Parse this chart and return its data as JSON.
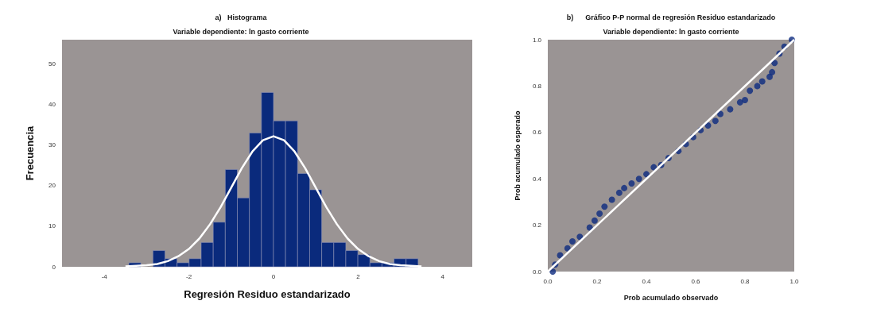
{
  "chart_data": [
    {
      "type": "histogram",
      "title": "a)   Histograma",
      "subtitle": "Variable dependiente: ln gasto corriente",
      "xlabel": "Regresión Residuo estandarizado",
      "ylabel": "Frecuencia",
      "bins": [
        -3.42,
        -3.135,
        -2.85,
        -2.565,
        -2.28,
        -1.995,
        -1.71,
        -1.425,
        -1.14,
        -0.855,
        -0.57,
        -0.285,
        0,
        0.285,
        0.57,
        0.855,
        1.14,
        1.425,
        1.71,
        1.995,
        2.28,
        2.565,
        2.85,
        3.135,
        3.42
      ],
      "values": [
        1,
        0,
        4,
        2,
        1,
        2,
        6,
        11,
        24,
        17,
        33,
        43,
        36,
        36,
        23,
        19,
        6,
        6,
        4,
        3,
        1,
        1,
        2,
        2
      ],
      "color": "#0a2a7c",
      "series": [
        {
          "type": "line",
          "marker": "none",
          "color": "#ffffff",
          "x": [
            -3.5,
            -3,
            -2.75,
            -2.5,
            -2.25,
            -2,
            -1.75,
            -1.5,
            -1.25,
            -1,
            -0.75,
            -0.5,
            -0.25,
            0,
            0.25,
            0.5,
            0.75,
            1,
            1.25,
            1.5,
            1.75,
            2,
            2.25,
            2.5,
            2.75,
            3,
            3.5
          ],
          "values": [
            0.1,
            0.4,
            0.7,
            1.4,
            2.6,
            4.4,
            7,
            10.5,
            14.7,
            19.5,
            24.3,
            28.4,
            31.2,
            32.2,
            31.2,
            28.4,
            24.3,
            19.5,
            14.7,
            10.5,
            7,
            4.4,
            2.6,
            1.4,
            0.7,
            0.4,
            0.1
          ]
        }
      ],
      "xlim": [
        -5,
        4.7
      ],
      "xticks": [
        -4,
        -2,
        0,
        2,
        4
      ],
      "ylim": [
        0,
        56
      ],
      "yticks": [
        0,
        10,
        20,
        30,
        40,
        50
      ],
      "grid": false
    },
    {
      "type": "scatter",
      "title": "b)      Gráfico P-P normal de regresión Residuo estandarizado",
      "subtitle": "Variable dependiente: ln gasto corriente",
      "xlabel": "Prob acumulado observado",
      "ylabel": "Prob acumulado esperado",
      "series": [
        {
          "type": "scatter",
          "color": "#0d2a80",
          "x": [
            0.02,
            0.03,
            0.05,
            0.08,
            0.1,
            0.13,
            0.17,
            0.19,
            0.21,
            0.23,
            0.26,
            0.29,
            0.31,
            0.34,
            0.37,
            0.4,
            0.43,
            0.46,
            0.49,
            0.53,
            0.56,
            0.59,
            0.62,
            0.65,
            0.68,
            0.7,
            0.74,
            0.78,
            0.8,
            0.82,
            0.85,
            0.87,
            0.9,
            0.91,
            0.92,
            0.94,
            0.96,
            0.99
          ],
          "values": [
            0,
            0.03,
            0.07,
            0.1,
            0.13,
            0.15,
            0.19,
            0.22,
            0.25,
            0.28,
            0.31,
            0.34,
            0.36,
            0.38,
            0.4,
            0.42,
            0.45,
            0.46,
            0.49,
            0.52,
            0.55,
            0.58,
            0.61,
            0.63,
            0.65,
            0.68,
            0.7,
            0.73,
            0.74,
            0.78,
            0.8,
            0.82,
            0.84,
            0.86,
            0.9,
            0.94,
            0.97,
            1
          ]
        },
        {
          "type": "line",
          "marker": "none",
          "color": "#ffffff",
          "x": [
            0,
            1
          ],
          "values": [
            0,
            1
          ]
        }
      ],
      "marker": "circle",
      "xlim": [
        0,
        1
      ],
      "xticks": [
        {
          "value": 0,
          "label": "0.0"
        },
        {
          "value": 0.2,
          "label": "0.2"
        },
        {
          "value": 0.4,
          "label": "0.4"
        },
        {
          "value": 0.6,
          "label": "0.6"
        },
        {
          "value": 0.8,
          "label": "0.8"
        },
        {
          "value": 1,
          "label": "1.0"
        }
      ],
      "ylim": [
        0,
        1
      ],
      "yticks": [
        {
          "value": 0,
          "label": "0.0"
        },
        {
          "value": 0.2,
          "label": "0.2"
        },
        {
          "value": 0.4,
          "label": "0.4"
        },
        {
          "value": 0.6,
          "label": "0.6"
        },
        {
          "value": 0.8,
          "label": "0.8"
        },
        {
          "value": 1,
          "label": "1.0"
        }
      ],
      "grid": false
    }
  ]
}
